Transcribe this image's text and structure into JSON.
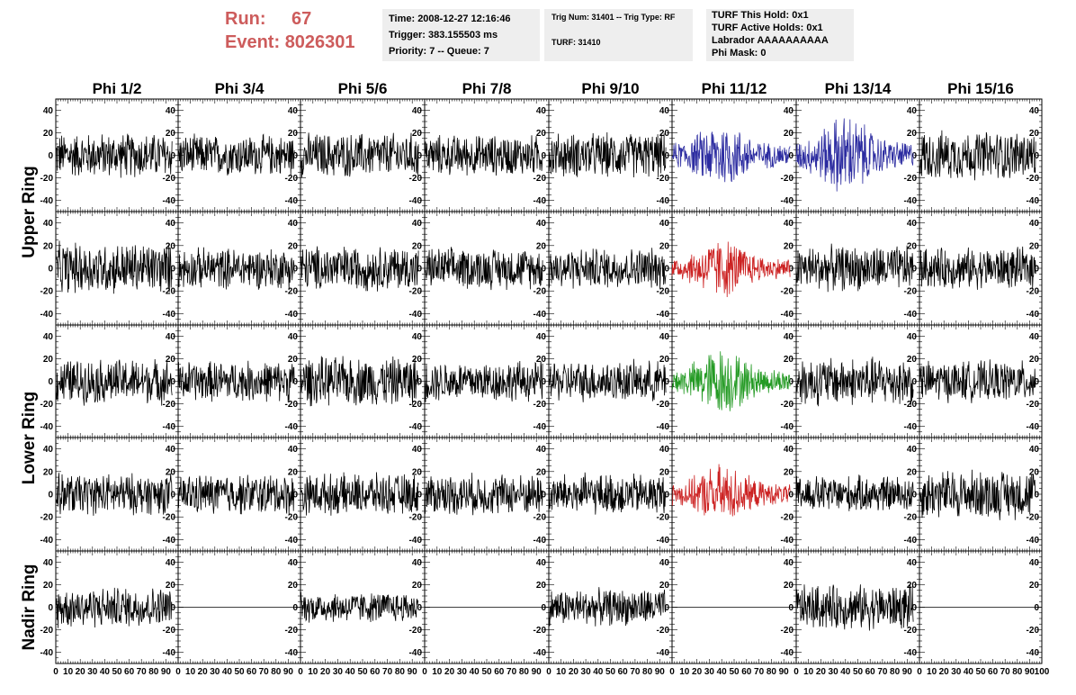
{
  "header": {
    "run_label": "Run:",
    "run_value": "67",
    "event_label": "Event:",
    "event_value": "8026301",
    "time_text": "Time: 2008-12-27 12:16:46",
    "trigger_text": "Trigger: 383.155503 ms",
    "priority_text": "Priority: 7 -- Queue: 7",
    "trig_num_text": "Trig Num: 31401 -- Trig Type: RF",
    "turf_text": "TURF: 31410",
    "turf_hold_text": "TURF This Hold: 0x1",
    "turf_active_text": "TURF Active Holds: 0x1",
    "labrador_text": "Labrador AAAAAAAAAA",
    "phi_mask_text": "Phi Mask: 0"
  },
  "colors": {
    "run_text": "#cd5c5c",
    "info_bg": "#eeeeee",
    "trace_default": "#000000",
    "trace_blue": "#2b2ba0",
    "trace_red": "#cc2222",
    "trace_green": "#239a23"
  },
  "chart_data": {
    "type": "line",
    "column_labels": [
      "Phi 1/2",
      "Phi 3/4",
      "Phi 5/6",
      "Phi 7/8",
      "Phi 9/10",
      "Phi 11/12",
      "Phi 13/14",
      "Phi 15/16"
    ],
    "row_labels": [
      "Upper Ring",
      "Lower Ring",
      "Nadir Ring"
    ],
    "rows": 5,
    "columns": 8,
    "row_groups": [
      {
        "label": "Upper Ring",
        "rows": [
          0,
          1
        ]
      },
      {
        "label": "Lower Ring",
        "rows": [
          2,
          3
        ]
      },
      {
        "label": "Nadir Ring",
        "rows": [
          4
        ]
      }
    ],
    "xlim": [
      0,
      100
    ],
    "ylim": [
      -50,
      50
    ],
    "x_tick_labels": [
      "0",
      "10",
      "20",
      "30",
      "40",
      "50",
      "60",
      "70",
      "80",
      "90",
      "100"
    ],
    "y_tick_labels": [
      "-40",
      "-20",
      "0",
      "20",
      "40"
    ],
    "samples": 260,
    "sample_x_range": [
      0,
      95
    ],
    "trace_amplitude": [
      [
        22,
        20,
        22,
        20,
        22,
        25,
        30,
        24
      ],
      [
        25,
        20,
        22,
        20,
        20,
        22,
        22,
        20
      ],
      [
        22,
        20,
        24,
        20,
        20,
        25,
        24,
        20
      ],
      [
        20,
        20,
        20,
        20,
        20,
        22,
        18,
        24
      ],
      [
        20,
        0,
        15,
        0,
        18,
        0,
        22,
        0
      ]
    ],
    "trace_colors": [
      [
        "default",
        "default",
        "default",
        "default",
        "default",
        "blue",
        "blue",
        "default"
      ],
      [
        "default",
        "default",
        "default",
        "default",
        "default",
        "red",
        "default",
        "default"
      ],
      [
        "default",
        "default",
        "default",
        "default",
        "default",
        "green",
        "default",
        "default"
      ],
      [
        "default",
        "default",
        "default",
        "default",
        "default",
        "red",
        "default",
        "default"
      ],
      [
        "default",
        "default",
        "default",
        "default",
        "default",
        "default",
        "default",
        "default"
      ]
    ],
    "grid": false
  }
}
